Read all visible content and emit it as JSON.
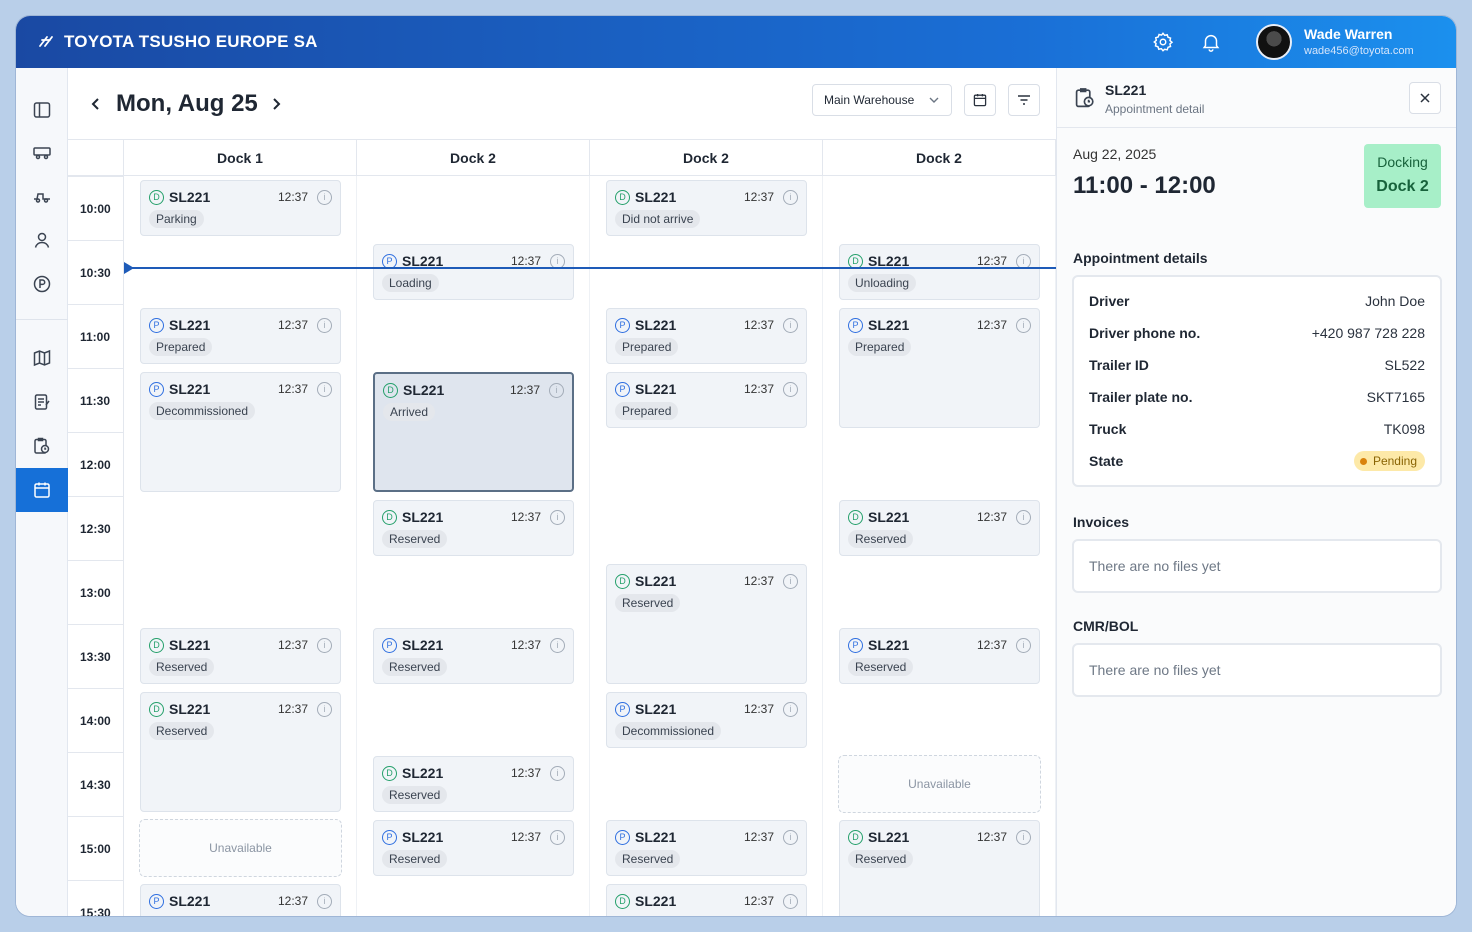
{
  "header": {
    "brand": "TOYOTA TSUSHO EUROPE SA",
    "user_name": "Wade Warren",
    "user_email": "wade456@toyota.com"
  },
  "toolbar": {
    "date_title": "Mon, Aug 25",
    "warehouse": "Main Warehouse"
  },
  "docks": [
    "Dock 1",
    "Dock 2",
    "Dock 2",
    "Dock 2"
  ],
  "times": [
    "10:00",
    "10:30",
    "11:00",
    "11:30",
    "12:00",
    "12:30",
    "13:00",
    "13:30",
    "14:00",
    "14:30",
    "15:00",
    "15:30"
  ],
  "appointments": [
    {
      "id": "SL221",
      "type": "D",
      "time": "12:37",
      "status": "Parking"
    },
    {
      "id": "SL221",
      "type": "P",
      "time": "12:37",
      "status": "Prepared"
    },
    {
      "id": "SL221",
      "type": "P",
      "time": "12:37",
      "status": "Decommissioned"
    },
    {
      "id": "SL221",
      "type": "D",
      "time": "12:37",
      "status": "Reserved"
    },
    {
      "id": "SL221",
      "type": "D",
      "time": "12:37",
      "status": "Reserved"
    },
    {
      "id": "SL221",
      "type": "P",
      "time": "12:37",
      "status": ""
    },
    {
      "id": "SL221",
      "type": "P",
      "time": "12:37",
      "status": "Loading"
    },
    {
      "id": "SL221",
      "type": "D",
      "time": "12:37",
      "status": "Arrived"
    },
    {
      "id": "SL221",
      "type": "D",
      "time": "12:37",
      "status": "Reserved"
    },
    {
      "id": "SL221",
      "type": "P",
      "time": "12:37",
      "status": "Reserved"
    },
    {
      "id": "SL221",
      "type": "D",
      "time": "12:37",
      "status": "Reserved"
    },
    {
      "id": "SL221",
      "type": "P",
      "time": "12:37",
      "status": "Reserved"
    },
    {
      "id": "SL221",
      "type": "D",
      "time": "12:37",
      "status": "Did not arrive"
    },
    {
      "id": "SL221",
      "type": "P",
      "time": "12:37",
      "status": "Prepared"
    },
    {
      "id": "SL221",
      "type": "P",
      "time": "12:37",
      "status": "Prepared"
    },
    {
      "id": "SL221",
      "type": "D",
      "time": "12:37",
      "status": "Reserved"
    },
    {
      "id": "SL221",
      "type": "P",
      "time": "12:37",
      "status": "Decommissioned"
    },
    {
      "id": "SL221",
      "type": "P",
      "time": "12:37",
      "status": "Reserved"
    },
    {
      "id": "SL221",
      "type": "D",
      "time": "12:37",
      "status": ""
    },
    {
      "id": "SL221",
      "type": "D",
      "time": "12:37",
      "status": "Unloading"
    },
    {
      "id": "SL221",
      "type": "P",
      "time": "12:37",
      "status": "Prepared"
    },
    {
      "id": "SL221",
      "type": "D",
      "time": "12:37",
      "status": "Reserved"
    },
    {
      "id": "SL221",
      "type": "P",
      "time": "12:37",
      "status": "Reserved"
    },
    {
      "id": "SL221",
      "type": "D",
      "time": "12:37",
      "status": "Reserved"
    }
  ],
  "unavailable_label": "Unavailable",
  "detail": {
    "code": "SL221",
    "subtitle": "Appointment detail",
    "date": "Aug 22, 2025",
    "time_range": "11:00 - 12:00",
    "dock_status": "Docking",
    "dock_name": "Dock 2",
    "section_title": "Appointment details",
    "rows": [
      {
        "key": "Driver",
        "value": "John Doe"
      },
      {
        "key": "Driver phone no.",
        "value": "+420 987 728 228"
      },
      {
        "key": "Trailer ID",
        "value": "SL522"
      },
      {
        "key": "Trailer plate no.",
        "value": "SKT7165"
      },
      {
        "key": "Truck",
        "value": "TK098"
      },
      {
        "key": "State",
        "value": "Pending"
      }
    ],
    "invoices_title": "Invoices",
    "invoices_empty": "There are no files yet",
    "cmr_title": "CMR/BOL",
    "cmr_empty": "There are no files yet"
  },
  "colors": {
    "accent": "#1670d8",
    "docking_bg": "#a7efc8",
    "pending_bg": "#fde9a8"
  }
}
